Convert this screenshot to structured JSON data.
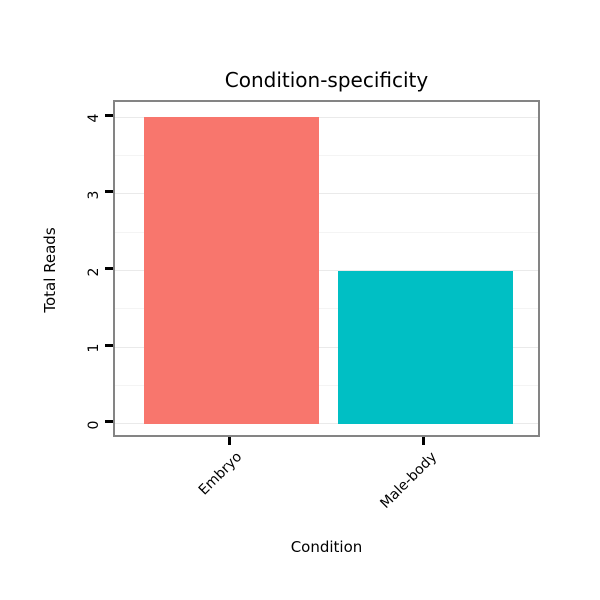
{
  "chart_data": {
    "type": "bar",
    "title": "Condition-specificity",
    "xlabel": "Condition",
    "ylabel": "Total Reads",
    "categories": [
      "Embryo",
      "Male-body"
    ],
    "values": [
      4,
      2
    ],
    "bar_colors": [
      "#F8766D",
      "#00BFC4"
    ],
    "ylim": [
      0,
      4
    ],
    "yticks": [
      0,
      1,
      2,
      3,
      4
    ],
    "x_tick_label_rotation_deg": 45,
    "y_tick_label_rotation_deg": 90,
    "grid": {
      "horizontal_major": true,
      "horizontal_minor": true,
      "major_color": "#EAEAEA",
      "minor_color": "#F4F4F4"
    },
    "legend": "none",
    "panel_border_color": "#848484",
    "tick_color": "#000000",
    "text_color": "#000000",
    "background_color": "#FFFFFF"
  }
}
